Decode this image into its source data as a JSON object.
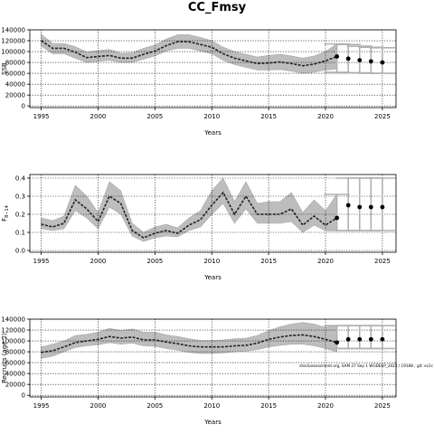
{
  "title": "CC_Fmsy",
  "watermark": "stockassessment.org, SAM 27 Sep 1 WGDEEP_2022 / 19188 ; git: ec2c",
  "colors": {
    "band": "#bdbdbd",
    "band_stroke": "#a8a8a8",
    "line": "#222222",
    "forecast_bar": "#b0b0b0",
    "point": "#000000",
    "grid": "#000000"
  },
  "chart_data": [
    {
      "type": "line",
      "ylabel": "SSB",
      "xlabel": "Years",
      "xlim": [
        1994,
        2026.2
      ],
      "ylim": [
        -3000,
        140000
      ],
      "xticks": [
        1995,
        2000,
        2005,
        2010,
        2015,
        2020,
        2025
      ],
      "yticks": [
        0,
        20000,
        40000,
        60000,
        80000,
        100000,
        120000,
        140000
      ],
      "ytick_labels": [
        "0",
        "20000",
        "40000",
        "60000",
        "80000",
        "100000",
        "120000",
        "140000"
      ],
      "grid": true,
      "x": [
        1995,
        1996,
        1997,
        1998,
        1999,
        2000,
        2001,
        2002,
        2003,
        2004,
        2005,
        2006,
        2007,
        2008,
        2009,
        2010,
        2011,
        2012,
        2013,
        2014,
        2015,
        2016,
        2017,
        2018,
        2019,
        2020,
        2021
      ],
      "estimate": [
        120000,
        106000,
        106000,
        99000,
        89000,
        91000,
        93000,
        88000,
        88000,
        95000,
        101000,
        111000,
        118000,
        118000,
        113000,
        108000,
        96000,
        88000,
        83000,
        78000,
        79000,
        81000,
        78000,
        74000,
        77000,
        83000,
        91000
      ],
      "lower": [
        110000,
        96000,
        96000,
        88000,
        80000,
        82000,
        84000,
        80000,
        80000,
        86000,
        92000,
        101000,
        106000,
        106000,
        101000,
        96000,
        84000,
        76000,
        71000,
        66000,
        66000,
        67000,
        64000,
        60000,
        62000,
        66000,
        68000
      ],
      "upper": [
        132000,
        115000,
        115000,
        109000,
        99000,
        102000,
        104000,
        97000,
        98000,
        106000,
        112000,
        123000,
        131000,
        131000,
        126000,
        120000,
        108000,
        100000,
        95000,
        90000,
        93000,
        95000,
        92000,
        88000,
        92000,
        100000,
        114000
      ],
      "forecast": {
        "x": [
          2021,
          2022,
          2023,
          2024,
          2025
        ],
        "estimate": [
          91000,
          87000,
          84000,
          82000,
          80000
        ],
        "lower": [
          62000,
          61000,
          61000,
          60000,
          60000
        ],
        "upper": [
          114000,
          113000,
          110000,
          108000,
          107000
        ]
      }
    },
    {
      "type": "line",
      "ylabel": "F",
      "ylabel_sub": "8−14",
      "xlabel": "Years",
      "xlim": [
        1994,
        2026.2
      ],
      "ylim": [
        -0.01,
        0.42
      ],
      "xticks": [
        1995,
        2000,
        2005,
        2010,
        2015,
        2020,
        2025
      ],
      "yticks": [
        0,
        0.1,
        0.2,
        0.3,
        0.4
      ],
      "ytick_labels": [
        "0.0",
        "0.1",
        "0.2",
        "0.3",
        "0.4"
      ],
      "grid": true,
      "x": [
        1995,
        1996,
        1997,
        1998,
        1999,
        2000,
        2001,
        2002,
        2003,
        2004,
        2005,
        2006,
        2007,
        2008,
        2009,
        2010,
        2011,
        2012,
        2013,
        2014,
        2015,
        2016,
        2017,
        2018,
        2019,
        2020,
        2021
      ],
      "estimate": [
        0.145,
        0.13,
        0.15,
        0.28,
        0.23,
        0.16,
        0.3,
        0.26,
        0.11,
        0.07,
        0.095,
        0.11,
        0.095,
        0.14,
        0.17,
        0.25,
        0.32,
        0.2,
        0.3,
        0.2,
        0.2,
        0.2,
        0.23,
        0.14,
        0.19,
        0.14,
        0.18
      ],
      "lower": [
        0.12,
        0.11,
        0.12,
        0.22,
        0.18,
        0.12,
        0.24,
        0.2,
        0.08,
        0.05,
        0.07,
        0.08,
        0.075,
        0.11,
        0.13,
        0.2,
        0.26,
        0.15,
        0.23,
        0.15,
        0.15,
        0.15,
        0.16,
        0.1,
        0.14,
        0.11,
        0.11
      ],
      "upper": [
        0.18,
        0.165,
        0.19,
        0.36,
        0.3,
        0.21,
        0.38,
        0.33,
        0.15,
        0.1,
        0.13,
        0.145,
        0.125,
        0.18,
        0.22,
        0.33,
        0.4,
        0.27,
        0.38,
        0.26,
        0.27,
        0.27,
        0.32,
        0.21,
        0.28,
        0.22,
        0.31
      ],
      "forecast": {
        "x": [
          2021,
          2022,
          2023,
          2024,
          2025
        ],
        "estimate": [
          0.18,
          0.25,
          0.24,
          0.24,
          0.24
        ],
        "lower": [
          0.11,
          0.11,
          0.11,
          0.11,
          0.11
        ],
        "upper": [
          0.31,
          0.4,
          0.4,
          0.4,
          0.4
        ]
      }
    },
    {
      "type": "line",
      "ylabel": "Recruits (age 2)",
      "xlabel": "Years",
      "xlim": [
        1994,
        2026.2
      ],
      "ylim": [
        -3000,
        140000
      ],
      "xticks": [
        1995,
        2000,
        2005,
        2010,
        2015,
        2020,
        2025
      ],
      "yticks": [
        0,
        20000,
        40000,
        60000,
        80000,
        100000,
        120000,
        140000
      ],
      "ytick_labels": [
        "0",
        "20000",
        "40000",
        "60000",
        "80000",
        "100000",
        "120000",
        "140000"
      ],
      "grid": true,
      "x": [
        1995,
        1996,
        1997,
        1998,
        1999,
        2000,
        2001,
        2002,
        2003,
        2004,
        2005,
        2006,
        2007,
        2008,
        2009,
        2010,
        2011,
        2012,
        2013,
        2014,
        2015,
        2016,
        2017,
        2018,
        2019,
        2020,
        2021
      ],
      "estimate": [
        79000,
        82000,
        89000,
        97000,
        100000,
        103000,
        108000,
        105000,
        107000,
        102000,
        102000,
        98000,
        95000,
        91000,
        89000,
        89000,
        89000,
        91000,
        92000,
        96000,
        103000,
        107000,
        110000,
        111000,
        108000,
        103000,
        97000
      ],
      "lower": [
        68000,
        72000,
        80000,
        88000,
        91000,
        93000,
        97000,
        94000,
        96000,
        91000,
        90000,
        86000,
        83000,
        79000,
        77000,
        77000,
        78000,
        80000,
        81000,
        84000,
        89000,
        92000,
        94000,
        94000,
        91000,
        86000,
        80000
      ],
      "upper": [
        89000,
        94000,
        100000,
        110000,
        112000,
        116000,
        123000,
        119000,
        122000,
        116000,
        116000,
        111000,
        108000,
        104000,
        101000,
        101000,
        102000,
        104000,
        105000,
        110000,
        119000,
        126000,
        131000,
        134000,
        131000,
        125000,
        128000
      ],
      "forecast": {
        "x": [
          2021,
          2022,
          2023,
          2024,
          2025
        ],
        "estimate": [
          97000,
          103000,
          103000,
          103000,
          103000
        ],
        "lower": [
          86000,
          86000,
          86000,
          86000,
          86000
        ],
        "upper": [
          128000,
          128000,
          128000,
          128000,
          128000
        ]
      }
    }
  ]
}
